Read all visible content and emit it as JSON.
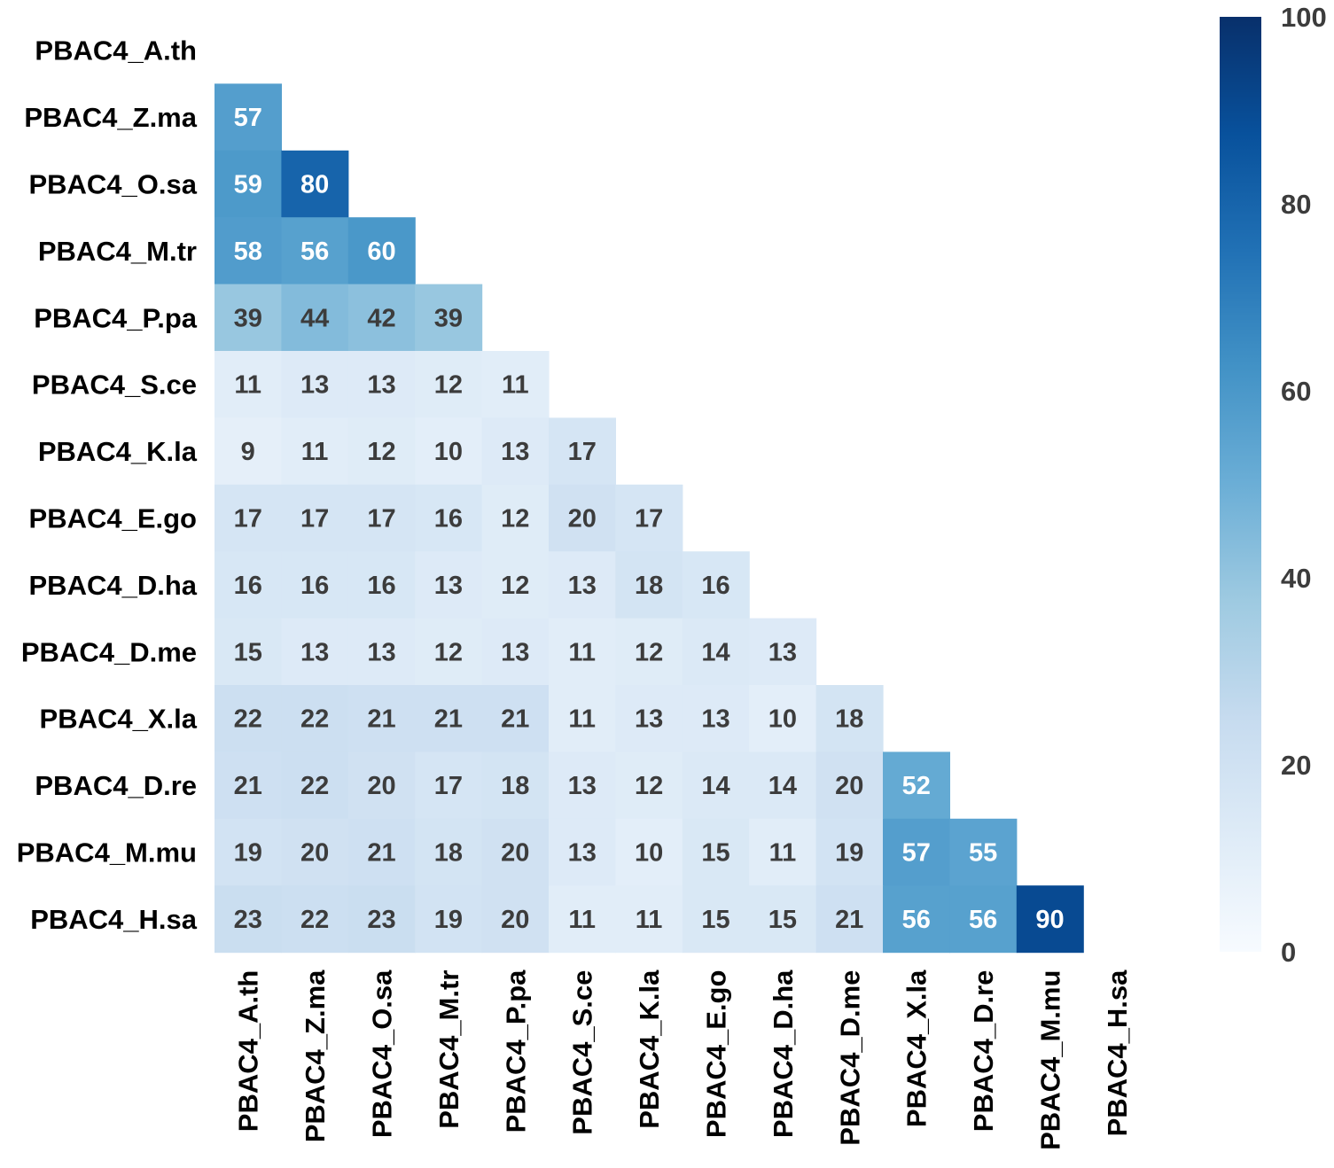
{
  "chart_data": {
    "type": "heatmap",
    "title": "",
    "xlabel": "",
    "ylabel": "",
    "labels": [
      "PBAC4_A.th",
      "PBAC4_Z.ma",
      "PBAC4_O.sa",
      "PBAC4_M.tr",
      "PBAC4_P.pa",
      "PBAC4_S.ce",
      "PBAC4_K.la",
      "PBAC4_E.go",
      "PBAC4_D.ha",
      "PBAC4_D.me",
      "PBAC4_X.la",
      "PBAC4_D.re",
      "PBAC4_M.mu",
      "PBAC4_H.sa"
    ],
    "matrix_lower_triangle": [
      [],
      [
        57
      ],
      [
        59,
        80
      ],
      [
        58,
        56,
        60
      ],
      [
        39,
        44,
        42,
        39
      ],
      [
        11,
        13,
        13,
        12,
        11
      ],
      [
        9,
        11,
        12,
        10,
        13,
        17
      ],
      [
        17,
        17,
        17,
        16,
        12,
        20,
        17
      ],
      [
        16,
        16,
        16,
        13,
        12,
        13,
        18,
        16
      ],
      [
        15,
        13,
        13,
        12,
        13,
        11,
        12,
        14,
        13
      ],
      [
        22,
        22,
        21,
        21,
        21,
        11,
        13,
        13,
        10,
        18
      ],
      [
        21,
        22,
        20,
        17,
        18,
        13,
        12,
        14,
        14,
        20,
        52
      ],
      [
        19,
        20,
        21,
        18,
        20,
        13,
        10,
        15,
        11,
        19,
        57,
        55
      ],
      [
        23,
        22,
        23,
        19,
        20,
        11,
        11,
        15,
        15,
        21,
        56,
        56,
        90
      ]
    ],
    "colorbar": {
      "range": [
        0,
        100
      ],
      "ticks": [
        0,
        20,
        40,
        60,
        80,
        100
      ],
      "colormap": "Blues",
      "colors": [
        "#f7fbff",
        "#deebf7",
        "#c6dbef",
        "#9ecae1",
        "#6baed6",
        "#4292c6",
        "#2171b5",
        "#08519c",
        "#08306b"
      ]
    },
    "annotation_text_colors": {
      "light": "#ffffff",
      "dark": "#3c3c3c"
    }
  }
}
